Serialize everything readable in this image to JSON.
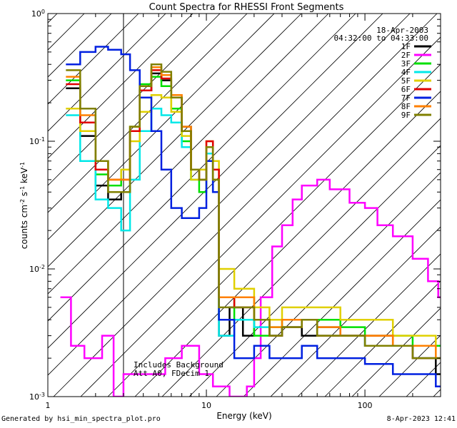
{
  "chart_data": {
    "type": "line",
    "title": "Count Spectra for RHESSI Front Segments",
    "xlabel": "Energy (keV)",
    "ylabel": "counts cm^-2 s^-1 keV^-1",
    "xscale": "log",
    "yscale": "log",
    "xlim": [
      1,
      300
    ],
    "ylim": [
      0.001,
      1.0
    ],
    "x_ticks": [
      "1",
      "10",
      "100"
    ],
    "y_ticks": [
      "10^-3",
      "10^-2",
      "10^-1",
      "10^0"
    ],
    "date": "18-Apr-2003",
    "time_range": "04:32:00 to 04:33:00",
    "notes": [
      "Includes Background",
      "Att A0, FDecim 1"
    ],
    "attenuator_edge_keV": 3,
    "legend_position": "top-right",
    "series": [
      {
        "name": "1F",
        "color": "#000000",
        "points": [
          [
            1.3,
            0.26
          ],
          [
            1.6,
            0.11
          ],
          [
            2.0,
            0.045
          ],
          [
            2.4,
            0.035
          ],
          [
            2.9,
            0.04
          ],
          [
            3.3,
            0.12
          ],
          [
            3.8,
            0.25
          ],
          [
            4.5,
            0.34
          ],
          [
            5.2,
            0.3
          ],
          [
            6.0,
            0.22
          ],
          [
            7.0,
            0.13
          ],
          [
            8.0,
            0.06
          ],
          [
            9.0,
            0.05
          ],
          [
            10.0,
            0.08
          ],
          [
            11.0,
            0.04
          ],
          [
            12.0,
            0.003
          ],
          [
            14.0,
            0.005
          ],
          [
            17.0,
            0.003
          ],
          [
            20.0,
            0.004
          ],
          [
            25.0,
            0.003
          ],
          [
            30.0,
            0.0035
          ],
          [
            40.0,
            0.003
          ],
          [
            50.0,
            0.0035
          ],
          [
            70.0,
            0.003
          ],
          [
            100.0,
            0.0025
          ],
          [
            150.0,
            0.0025
          ],
          [
            200.0,
            0.002
          ],
          [
            280.0,
            0.0015
          ]
        ]
      },
      {
        "name": "2F",
        "color": "#ff00ff",
        "points": [
          [
            1.2,
            0.006
          ],
          [
            1.4,
            0.0025
          ],
          [
            1.7,
            0.002
          ],
          [
            2.2,
            0.003
          ],
          [
            2.6,
            0.001
          ],
          [
            3.0,
            0.0015
          ],
          [
            4.0,
            0.0015
          ],
          [
            5.5,
            0.002
          ],
          [
            7.0,
            0.0025
          ],
          [
            9.0,
            0.0015
          ],
          [
            11.0,
            0.0012
          ],
          [
            14.0,
            0.001
          ],
          [
            18.0,
            0.0012
          ],
          [
            20.0,
            0.002
          ],
          [
            22.0,
            0.006
          ],
          [
            26.0,
            0.015
          ],
          [
            30.0,
            0.022
          ],
          [
            35.0,
            0.035
          ],
          [
            40.0,
            0.045
          ],
          [
            50.0,
            0.05
          ],
          [
            60.0,
            0.042
          ],
          [
            80.0,
            0.033
          ],
          [
            100.0,
            0.03
          ],
          [
            120.0,
            0.022
          ],
          [
            150.0,
            0.018
          ],
          [
            200.0,
            0.012
          ],
          [
            250.0,
            0.008
          ],
          [
            290.0,
            0.006
          ]
        ]
      },
      {
        "name": "3F",
        "color": "#00e000",
        "points": [
          [
            1.3,
            0.3
          ],
          [
            1.6,
            0.12
          ],
          [
            2.0,
            0.055
          ],
          [
            2.4,
            0.045
          ],
          [
            2.9,
            0.06
          ],
          [
            3.3,
            0.13
          ],
          [
            3.8,
            0.28
          ],
          [
            4.5,
            0.32
          ],
          [
            5.2,
            0.27
          ],
          [
            6.0,
            0.18
          ],
          [
            7.0,
            0.1
          ],
          [
            8.0,
            0.05
          ],
          [
            9.0,
            0.04
          ],
          [
            10.0,
            0.09
          ],
          [
            11.0,
            0.05
          ],
          [
            12.0,
            0.004
          ],
          [
            15.0,
            0.006
          ],
          [
            20.0,
            0.003
          ],
          [
            25.0,
            0.0035
          ],
          [
            30.0,
            0.004
          ],
          [
            40.0,
            0.004
          ],
          [
            50.0,
            0.004
          ],
          [
            70.0,
            0.0035
          ],
          [
            100.0,
            0.003
          ],
          [
            150.0,
            0.003
          ],
          [
            200.0,
            0.0025
          ],
          [
            280.0,
            0.0025
          ]
        ]
      },
      {
        "name": "4F",
        "color": "#00e8e8",
        "points": [
          [
            1.3,
            0.16
          ],
          [
            1.6,
            0.07
          ],
          [
            2.0,
            0.035
          ],
          [
            2.4,
            0.03
          ],
          [
            2.9,
            0.02
          ],
          [
            3.3,
            0.05
          ],
          [
            3.8,
            0.12
          ],
          [
            4.5,
            0.18
          ],
          [
            5.2,
            0.16
          ],
          [
            6.0,
            0.14
          ],
          [
            7.0,
            0.09
          ],
          [
            8.0,
            0.05
          ],
          [
            9.0,
            0.05
          ],
          [
            10.0,
            0.08
          ],
          [
            11.0,
            0.04
          ],
          [
            12.0,
            0.003
          ],
          [
            15.0,
            0.004
          ],
          [
            20.0,
            0.0035
          ],
          [
            25.0,
            0.003
          ],
          [
            30.0,
            0.0035
          ],
          [
            40.0,
            0.004
          ],
          [
            50.0,
            0.003
          ],
          [
            70.0,
            0.003
          ],
          [
            100.0,
            0.0025
          ],
          [
            150.0,
            0.0025
          ],
          [
            200.0,
            0.002
          ],
          [
            280.0,
            0.002
          ]
        ]
      },
      {
        "name": "5F",
        "color": "#e0d000",
        "points": [
          [
            1.3,
            0.18
          ],
          [
            1.6,
            0.12
          ],
          [
            2.0,
            0.07
          ],
          [
            2.4,
            0.05
          ],
          [
            2.9,
            0.06
          ],
          [
            3.3,
            0.1
          ],
          [
            3.8,
            0.17
          ],
          [
            4.5,
            0.23
          ],
          [
            5.2,
            0.22
          ],
          [
            6.0,
            0.17
          ],
          [
            7.0,
            0.11
          ],
          [
            8.0,
            0.05
          ],
          [
            9.0,
            0.06
          ],
          [
            10.0,
            0.1
          ],
          [
            11.0,
            0.07
          ],
          [
            12.0,
            0.01
          ],
          [
            15.0,
            0.007
          ],
          [
            20.0,
            0.005
          ],
          [
            25.0,
            0.004
          ],
          [
            30.0,
            0.005
          ],
          [
            40.0,
            0.005
          ],
          [
            50.0,
            0.005
          ],
          [
            70.0,
            0.004
          ],
          [
            100.0,
            0.004
          ],
          [
            150.0,
            0.003
          ],
          [
            200.0,
            0.003
          ],
          [
            280.0,
            0.002
          ]
        ]
      },
      {
        "name": "6F",
        "color": "#e00000",
        "points": [
          [
            1.3,
            0.28
          ],
          [
            1.6,
            0.14
          ],
          [
            2.0,
            0.06
          ],
          [
            2.4,
            0.05
          ],
          [
            2.9,
            0.05
          ],
          [
            3.3,
            0.12
          ],
          [
            3.8,
            0.25
          ],
          [
            4.5,
            0.36
          ],
          [
            5.2,
            0.31
          ],
          [
            6.0,
            0.22
          ],
          [
            7.0,
            0.12
          ],
          [
            8.0,
            0.06
          ],
          [
            9.0,
            0.05
          ],
          [
            10.0,
            0.1
          ],
          [
            11.0,
            0.06
          ],
          [
            12.0,
            0.006
          ],
          [
            15.0,
            0.005
          ],
          [
            20.0,
            0.004
          ],
          [
            25.0,
            0.003
          ],
          [
            30.0,
            0.0035
          ],
          [
            40.0,
            0.004
          ],
          [
            50.0,
            0.003
          ],
          [
            70.0,
            0.003
          ],
          [
            100.0,
            0.003
          ],
          [
            150.0,
            0.0025
          ],
          [
            200.0,
            0.002
          ],
          [
            280.0,
            0.002
          ]
        ]
      },
      {
        "name": "7F",
        "color": "#0020e0",
        "points": [
          [
            1.3,
            0.4
          ],
          [
            1.6,
            0.5
          ],
          [
            2.0,
            0.55
          ],
          [
            2.4,
            0.52
          ],
          [
            2.9,
            0.48
          ],
          [
            3.3,
            0.36
          ],
          [
            3.8,
            0.22
          ],
          [
            4.5,
            0.12
          ],
          [
            5.2,
            0.06
          ],
          [
            6.0,
            0.03
          ],
          [
            7.0,
            0.025
          ],
          [
            8.0,
            0.025
          ],
          [
            9.0,
            0.03
          ],
          [
            10.0,
            0.07
          ],
          [
            11.0,
            0.04
          ],
          [
            12.0,
            0.004
          ],
          [
            15.0,
            0.002
          ],
          [
            20.0,
            0.0025
          ],
          [
            25.0,
            0.002
          ],
          [
            30.0,
            0.002
          ],
          [
            40.0,
            0.0025
          ],
          [
            50.0,
            0.002
          ],
          [
            70.0,
            0.002
          ],
          [
            100.0,
            0.0018
          ],
          [
            150.0,
            0.0015
          ],
          [
            200.0,
            0.0015
          ],
          [
            280.0,
            0.0012
          ]
        ]
      },
      {
        "name": "8F",
        "color": "#ff8000",
        "points": [
          [
            1.3,
            0.32
          ],
          [
            1.6,
            0.16
          ],
          [
            2.0,
            0.07
          ],
          [
            2.4,
            0.05
          ],
          [
            2.9,
            0.05
          ],
          [
            3.3,
            0.13
          ],
          [
            3.8,
            0.27
          ],
          [
            4.5,
            0.38
          ],
          [
            5.2,
            0.33
          ],
          [
            6.0,
            0.23
          ],
          [
            7.0,
            0.13
          ],
          [
            8.0,
            0.06
          ],
          [
            9.0,
            0.05
          ],
          [
            10.0,
            0.09
          ],
          [
            11.0,
            0.05
          ],
          [
            12.0,
            0.006
          ],
          [
            15.0,
            0.006
          ],
          [
            20.0,
            0.004
          ],
          [
            25.0,
            0.0035
          ],
          [
            30.0,
            0.004
          ],
          [
            40.0,
            0.004
          ],
          [
            50.0,
            0.0035
          ],
          [
            70.0,
            0.003
          ],
          [
            100.0,
            0.003
          ],
          [
            150.0,
            0.0025
          ],
          [
            200.0,
            0.0025
          ],
          [
            280.0,
            0.002
          ]
        ]
      },
      {
        "name": "9F",
        "color": "#808000",
        "points": [
          [
            1.3,
            0.36
          ],
          [
            1.6,
            0.18
          ],
          [
            2.0,
            0.07
          ],
          [
            2.4,
            0.04
          ],
          [
            2.9,
            0.04
          ],
          [
            3.3,
            0.13
          ],
          [
            3.8,
            0.27
          ],
          [
            4.5,
            0.4
          ],
          [
            5.2,
            0.35
          ],
          [
            6.0,
            0.22
          ],
          [
            7.0,
            0.12
          ],
          [
            8.0,
            0.06
          ],
          [
            9.0,
            0.05
          ],
          [
            10.0,
            0.09
          ],
          [
            11.0,
            0.05
          ],
          [
            12.0,
            0.005
          ],
          [
            15.0,
            0.005
          ],
          [
            20.0,
            0.004
          ],
          [
            25.0,
            0.003
          ],
          [
            30.0,
            0.0035
          ],
          [
            40.0,
            0.004
          ],
          [
            50.0,
            0.003
          ],
          [
            70.0,
            0.003
          ],
          [
            100.0,
            0.0025
          ],
          [
            150.0,
            0.0025
          ],
          [
            200.0,
            0.002
          ],
          [
            280.0,
            0.002
          ]
        ]
      }
    ]
  },
  "footer": {
    "left": "Generated by hsi_min_spectra_plot.pro",
    "right": "8-Apr-2023 12:41"
  }
}
